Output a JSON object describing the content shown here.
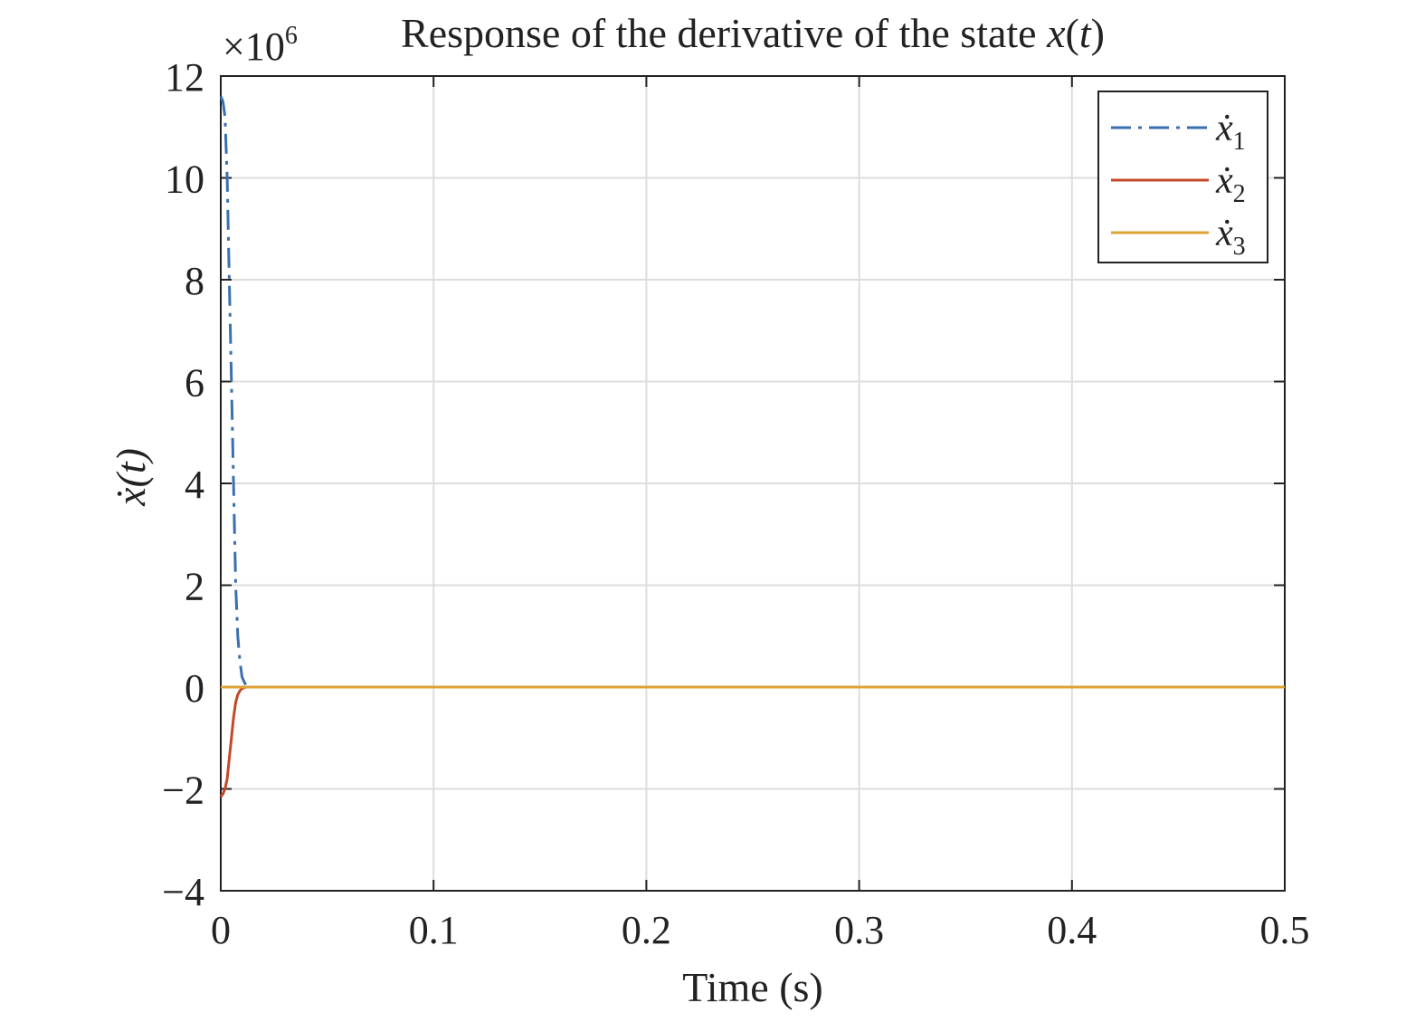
{
  "chart_data": {
    "type": "line",
    "title": "Response of the derivative of the state x(t)",
    "title_prefix": "Response of the derivative of the state ",
    "title_math": "x",
    "title_paren_open": "(",
    "title_arg": "t",
    "title_paren_close": ")",
    "xlabel": "Time (s)",
    "ylabel": "ẋ(t)",
    "y_multiplier_base": "×10",
    "y_multiplier_exp": "6",
    "xlim": [
      0,
      0.5
    ],
    "ylim": [
      -4,
      12
    ],
    "x_ticks": [
      0,
      0.1,
      0.2,
      0.3,
      0.4,
      0.5
    ],
    "x_tick_labels": [
      "0",
      "0.1",
      "0.2",
      "0.3",
      "0.4",
      "0.5"
    ],
    "y_ticks": [
      -4,
      -2,
      0,
      2,
      4,
      6,
      8,
      10,
      12
    ],
    "y_tick_labels": [
      "−4",
      "−2",
      "0",
      "2",
      "4",
      "6",
      "8",
      "10",
      "12"
    ],
    "grid": true,
    "legend_position": "top-right",
    "series": [
      {
        "name": "ẋ1",
        "legend_base": "ẋ",
        "legend_sub": "1",
        "color": "#3a6fb0",
        "dash": "dash-dot",
        "x": [
          0.0,
          0.001,
          0.002,
          0.003,
          0.004,
          0.005,
          0.006,
          0.007,
          0.008,
          0.009,
          0.01,
          0.011,
          0.012,
          0.013,
          0.015,
          0.02,
          0.05,
          0.1,
          0.2,
          0.3,
          0.4,
          0.5
        ],
        "values": [
          11.6,
          11.5,
          11.2,
          10.0,
          8.0,
          6.0,
          4.0,
          2.0,
          1.0,
          0.5,
          0.2,
          0.1,
          0.03,
          0.01,
          0.0,
          0.0,
          0.0,
          0.0,
          0.0,
          0.0,
          0.0,
          0.0
        ]
      },
      {
        "name": "ẋ2",
        "legend_base": "ẋ",
        "legend_sub": "2",
        "color": "#c4482a",
        "dash": "solid",
        "x": [
          0.0,
          0.001,
          0.002,
          0.003,
          0.004,
          0.005,
          0.006,
          0.007,
          0.008,
          0.009,
          0.01,
          0.011,
          0.012,
          0.015,
          0.02,
          0.05,
          0.1,
          0.2,
          0.3,
          0.4,
          0.5
        ],
        "values": [
          -2.15,
          -2.1,
          -2.0,
          -1.8,
          -1.4,
          -1.0,
          -0.6,
          -0.3,
          -0.15,
          -0.07,
          -0.03,
          -0.01,
          0.0,
          0.0,
          0.0,
          0.0,
          0.0,
          0.0,
          0.0,
          0.0,
          0.0
        ]
      },
      {
        "name": "ẋ3",
        "legend_base": "ẋ",
        "legend_sub": "3",
        "color": "#dfa235",
        "dash": "solid",
        "x": [
          0.0,
          0.005,
          0.01,
          0.05,
          0.1,
          0.2,
          0.3,
          0.4,
          0.5
        ],
        "values": [
          0.0,
          0.0,
          0.0,
          0.0,
          0.0,
          0.0,
          0.0,
          0.0,
          0.0
        ]
      }
    ]
  }
}
